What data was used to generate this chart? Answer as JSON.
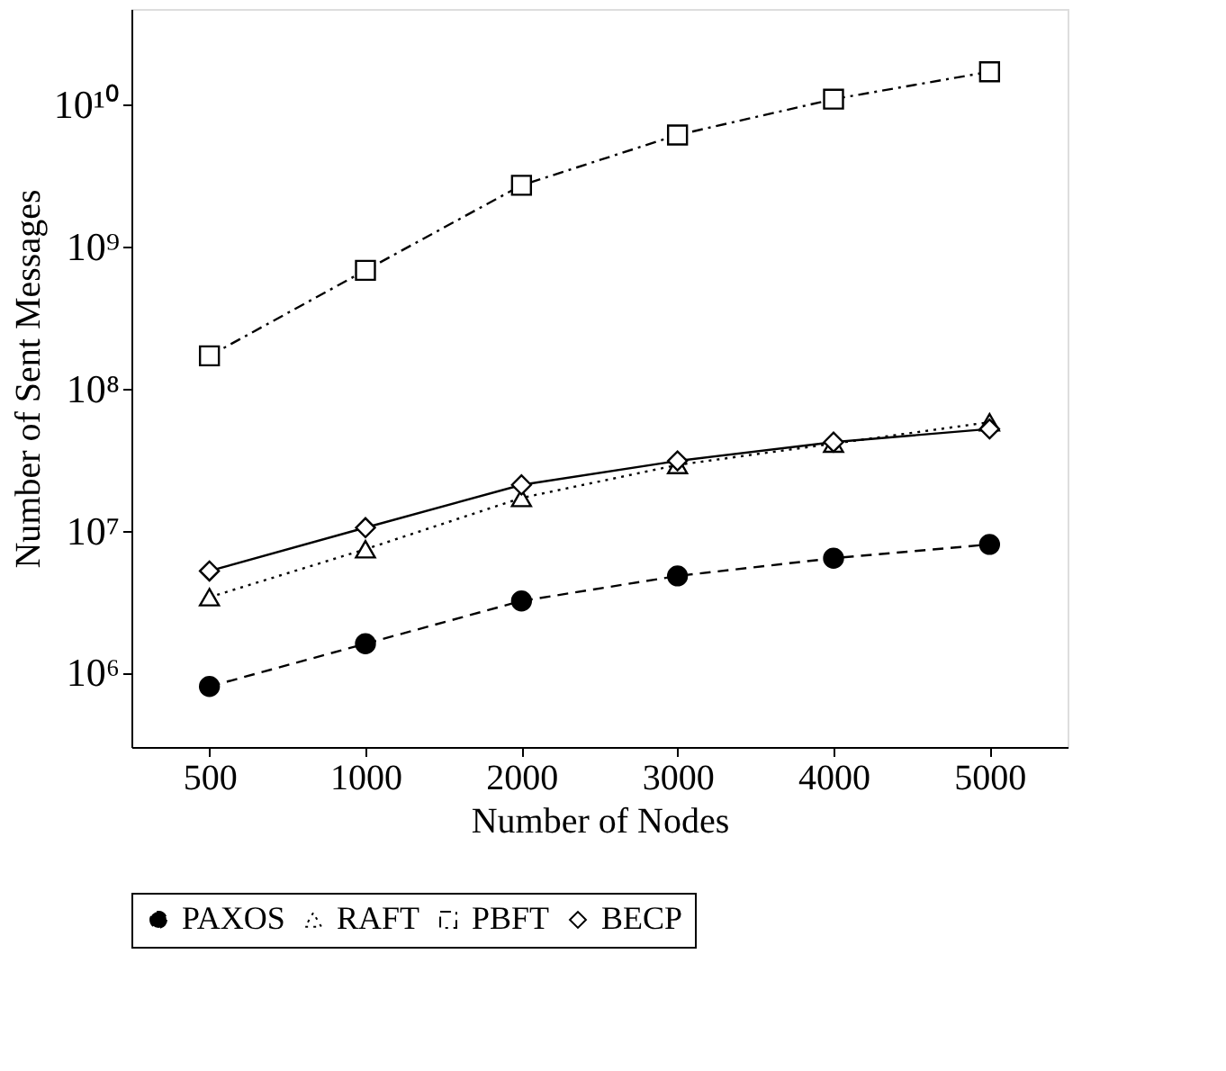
{
  "chart_data": {
    "type": "line",
    "xlabel": "Number of Nodes",
    "ylabel": "Number of Sent Messages",
    "categories": [
      "500",
      "1000",
      "2000",
      "3000",
      "4000",
      "5000"
    ],
    "log": "y",
    "ylim": [
      300000,
      47000000000
    ],
    "yticks": [
      {
        "value": 1000000,
        "label": "10⁶"
      },
      {
        "value": 10000000,
        "label": "10⁷"
      },
      {
        "value": 100000000,
        "label": "10⁸"
      },
      {
        "value": 1000000000,
        "label": "10⁹"
      },
      {
        "value": 10000000000,
        "label": "10¹⁰"
      }
    ],
    "grid": false,
    "legend": "bottom",
    "series": [
      {
        "name": "PAXOS",
        "color": "#000000",
        "marker": "circle",
        "line_style": "dashed",
        "values": [
          800000,
          1600000,
          3200000,
          4800000,
          6400000,
          8000000
        ]
      },
      {
        "name": "RAFT",
        "color": "#000000",
        "marker": "triangle",
        "line_style": "dotted",
        "values": [
          3400000,
          7400000,
          17000000,
          29000000,
          41000000,
          58000000
        ]
      },
      {
        "name": "PBFT",
        "color": "#000000",
        "marker": "square",
        "line_style": "dashdot",
        "values": [
          170000000,
          680000000,
          2700000000,
          6100000000,
          10900000000,
          17000000000
        ]
      },
      {
        "name": "BECP",
        "color": "#000000",
        "marker": "diamond",
        "line_style": "solid",
        "values": [
          5200000,
          10500000,
          21000000,
          31000000,
          42000000,
          52000000
        ]
      }
    ]
  }
}
